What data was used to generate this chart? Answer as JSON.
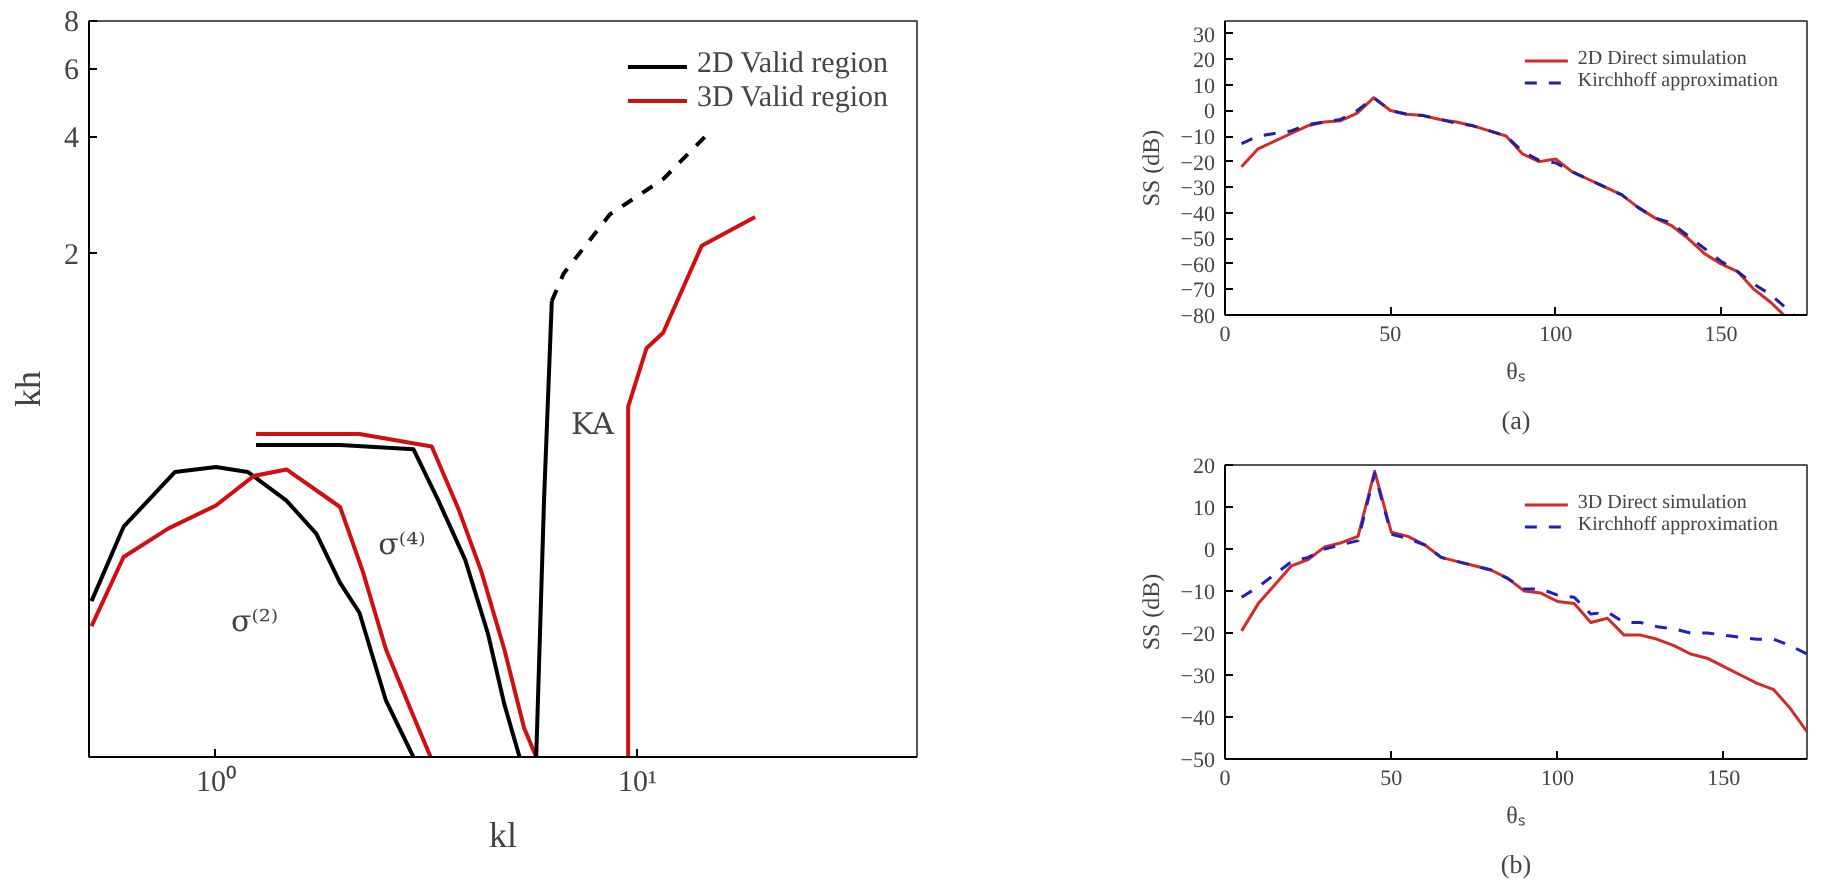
{
  "chart_data": [
    {
      "type": "line",
      "xlabel": "kl",
      "ylabel": "kh",
      "log": "xy",
      "xlim": [
        0.5,
        46
      ],
      "ylim": [
        0.1,
        8
      ],
      "xticks": [
        {
          "value": 1,
          "label": "10⁰"
        },
        {
          "value": 10,
          "label": "10¹"
        }
      ],
      "yticks": [
        2,
        4,
        6,
        8
      ],
      "grid": false,
      "legend": "top right",
      "series": [
        {
          "name": "2D Valid region",
          "color": "#000000",
          "x": [
            0.507,
            0.604,
            0.8,
            1.0,
            1.19,
            1.47,
            1.73,
            1.97,
            2.19,
            2.53,
            2.94
          ],
          "values": [
            0.253,
            0.394,
            0.546,
            0.562,
            0.546,
            0.46,
            0.378,
            0.282,
            0.236,
            0.14,
            0.1
          ]
        },
        {
          "name": "3D Valid region",
          "color": "#d01010",
          "x": [
            0.507,
            0.604,
            0.772,
            1.0,
            1.23,
            1.47,
            1.97,
            2.23,
            2.53,
            2.92,
            3.23
          ],
          "values": [
            0.218,
            0.329,
            0.39,
            0.447,
            0.533,
            0.554,
            0.443,
            0.302,
            0.19,
            0.13,
            0.1
          ]
        },
        {
          "color": "#000000",
          "x": [
            1.245,
            1.97,
            2.94,
            3.37,
            3.9,
            4.42,
            4.83,
            5.25
          ],
          "values": [
            0.641,
            0.641,
            0.625,
            0.46,
            0.324,
            0.208,
            0.137,
            0.1
          ]
        },
        {
          "color": "#d01010",
          "x": [
            1.245,
            2.19,
            3.25,
            3.76,
            4.26,
            4.83,
            5.38,
            5.75
          ],
          "values": [
            0.684,
            0.684,
            0.635,
            0.438,
            0.302,
            0.19,
            0.119,
            0.1
          ]
        },
        {
          "color": "#000000",
          "x": [
            5.75,
            6.0,
            6.26
          ],
          "values": [
            0.1,
            0.46,
            1.51
          ]
        },
        {
          "color": "#000000",
          "line_style": "dashed",
          "x": [
            6.26,
            6.68,
            8.6,
            11.5,
            14.5
          ],
          "values": [
            1.51,
            1.78,
            2.53,
            3.12,
            4.03
          ]
        },
        {
          "color": "#d01010",
          "x": [
            9.5,
            9.5,
            10.5,
            11.5,
            14.2,
            19.0
          ],
          "values": [
            0.1,
            0.805,
            1.14,
            1.25,
            2.1,
            2.49
          ]
        }
      ],
      "annotations": [
        "σ⁽²⁾",
        "σ⁽⁴⁾",
        "KA"
      ]
    },
    {
      "type": "line",
      "xlabel": "θₛ",
      "ylabel": "SS (dB)",
      "xlim": [
        0,
        176
      ],
      "ylim": [
        -80,
        35
      ],
      "xticks": [
        0,
        50,
        100,
        150
      ],
      "yticks": [
        -80,
        -70,
        -60,
        -50,
        -40,
        -30,
        -20,
        -10,
        0,
        10,
        20,
        30
      ],
      "grid": false,
      "legend": "top right",
      "x": [
        5,
        10,
        15,
        20,
        25,
        30,
        35,
        40,
        45,
        50,
        55,
        60,
        65,
        70,
        75,
        80,
        85,
        90,
        95,
        100,
        105,
        110,
        115,
        120,
        125,
        130,
        135,
        140,
        145,
        150,
        155,
        160,
        165,
        169
      ],
      "series": [
        {
          "name": "2D Direct simulation",
          "color": "#d42a2a",
          "values": [
            -22,
            -15,
            -12,
            -9,
            -6,
            -4.5,
            -4,
            -1,
            5,
            0,
            -1.5,
            -2,
            -3.5,
            -4.5,
            -6,
            -8,
            -10,
            -17,
            -20,
            -19,
            -24,
            -27,
            -30,
            -33,
            -38,
            -42,
            -45,
            -50,
            -56,
            -60,
            -63,
            -70,
            -75,
            -80
          ]
        },
        {
          "name": "Kirchhoff approximation",
          "color": "#2020a0",
          "line_style": "dashed",
          "x": [
            5,
            10,
            15,
            20,
            25,
            30,
            35,
            40,
            45,
            50,
            55,
            60,
            65,
            70,
            75,
            80,
            85,
            90,
            95,
            100,
            105,
            110,
            115,
            120,
            125,
            130,
            135,
            140,
            145,
            150,
            155,
            160,
            165,
            172
          ],
          "values": [
            -13,
            -10,
            -9,
            -8,
            -5.5,
            -4.5,
            -3.5,
            0,
            5,
            0,
            -1.5,
            -2,
            -3.5,
            -5,
            -6,
            -8,
            -10,
            -16,
            -19.5,
            -20.5,
            -24,
            -27,
            -30,
            -33,
            -38,
            -42,
            -44,
            -49,
            -54,
            -59,
            -63,
            -68,
            -72,
            -80
          ]
        }
      ],
      "annotations": [
        "(a)"
      ]
    },
    {
      "type": "line",
      "xlabel": "θₛ",
      "ylabel": "SS (dB)",
      "xlim": [
        0,
        175
      ],
      "ylim": [
        -50,
        20
      ],
      "xticks": [
        0,
        50,
        100,
        150
      ],
      "yticks": [
        -50,
        -40,
        -30,
        -20,
        -10,
        0,
        10,
        20
      ],
      "grid": false,
      "legend": "top right",
      "x": [
        5,
        10,
        15,
        20,
        25,
        30,
        35,
        40,
        45,
        50,
        55,
        60,
        65,
        70,
        75,
        80,
        85,
        90,
        95,
        100,
        105,
        110,
        115,
        120,
        125,
        130,
        135,
        140,
        145,
        150,
        155,
        160,
        165,
        170,
        175
      ],
      "series": [
        {
          "name": "3D Direct simulation",
          "color": "#d42a2a",
          "values": [
            -19.5,
            -13,
            -8.5,
            -4,
            -2.5,
            0.5,
            1.5,
            3,
            18.5,
            4,
            3,
            1,
            -2,
            -3,
            -4,
            -5,
            -7,
            -10,
            -10.5,
            -12.5,
            -13,
            -17.5,
            -16.5,
            -20.5,
            -20.5,
            -21.5,
            -23,
            -25,
            -26,
            -28,
            -30,
            -32,
            -33.5,
            -38,
            -43.5
          ]
        },
        {
          "name": "Kirchhoff approximation",
          "color": "#2020c0",
          "line_style": "dashed",
          "values": [
            -11.5,
            -9,
            -6,
            -3,
            -2,
            0,
            1,
            2,
            18,
            3.5,
            2.5,
            1,
            -2,
            -3,
            -4,
            -5,
            -7,
            -9.5,
            -9.5,
            -11,
            -11.5,
            -15.5,
            -15,
            -17.5,
            -17.5,
            -18.5,
            -19,
            -20,
            -20,
            -20.5,
            -21,
            -21.5,
            -21.5,
            -23,
            -25
          ]
        }
      ],
      "annotations": [
        "(b)"
      ]
    }
  ]
}
